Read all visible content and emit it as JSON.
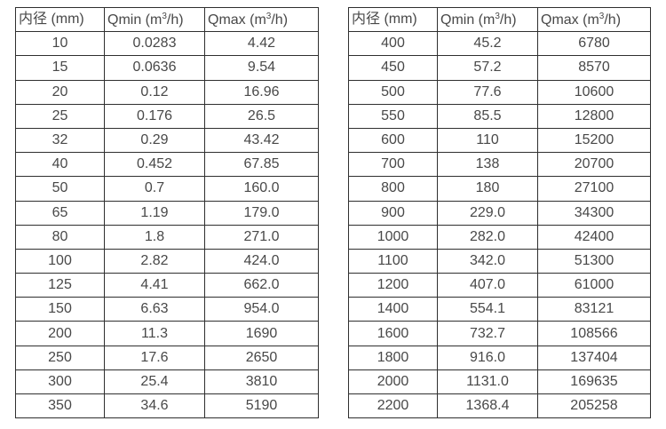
{
  "colors": {
    "background": "#ffffff",
    "border": "#2f2f2f",
    "text": "#484848"
  },
  "tables": [
    {
      "headers": [
        {
          "pre": "内径 (mm)",
          "sup": "",
          "post": ""
        },
        {
          "pre": "Qmin (m",
          "sup": "3",
          "post": "/h)"
        },
        {
          "pre": "Qmax (m",
          "sup": "3",
          "post": "/h)"
        }
      ],
      "rows": [
        [
          "10",
          "0.0283",
          "4.42"
        ],
        [
          "15",
          "0.0636",
          "9.54"
        ],
        [
          "20",
          "0.12",
          "16.96"
        ],
        [
          "25",
          "0.176",
          "26.5"
        ],
        [
          "32",
          "0.29",
          "43.42"
        ],
        [
          "40",
          "0.452",
          "67.85"
        ],
        [
          "50",
          "0.7",
          "160.0"
        ],
        [
          "65",
          "1.19",
          "179.0"
        ],
        [
          "80",
          "1.8",
          "271.0"
        ],
        [
          "100",
          "2.82",
          "424.0"
        ],
        [
          "125",
          "4.41",
          "662.0"
        ],
        [
          "150",
          "6.63",
          "954.0"
        ],
        [
          "200",
          "11.3",
          "1690"
        ],
        [
          "250",
          "17.6",
          "2650"
        ],
        [
          "300",
          "25.4",
          "3810"
        ],
        [
          "350",
          "34.6",
          "5190"
        ]
      ]
    },
    {
      "headers": [
        {
          "pre": "内径 (mm)",
          "sup": "",
          "post": ""
        },
        {
          "pre": "Qmin (m",
          "sup": "3",
          "post": "/h)"
        },
        {
          "pre": "Qmax (m",
          "sup": "3",
          "post": "/h)"
        }
      ],
      "rows": [
        [
          "400",
          "45.2",
          "6780"
        ],
        [
          "450",
          "57.2",
          "8570"
        ],
        [
          "500",
          "77.6",
          "10600"
        ],
        [
          "550",
          "85.5",
          "12800"
        ],
        [
          "600",
          "110",
          "15200"
        ],
        [
          "700",
          "138",
          "20700"
        ],
        [
          "800",
          "180",
          "27100"
        ],
        [
          "900",
          "229.0",
          "34300"
        ],
        [
          "1000",
          "282.0",
          "42400"
        ],
        [
          "1100",
          "342.0",
          "51300"
        ],
        [
          "1200",
          "407.0",
          "61000"
        ],
        [
          "1400",
          "554.1",
          "83121"
        ],
        [
          "1600",
          "732.7",
          "108566"
        ],
        [
          "1800",
          "916.0",
          "137404"
        ],
        [
          "2000",
          "1131.0",
          "169635"
        ],
        [
          "2200",
          "1368.4",
          "205258"
        ]
      ]
    }
  ]
}
